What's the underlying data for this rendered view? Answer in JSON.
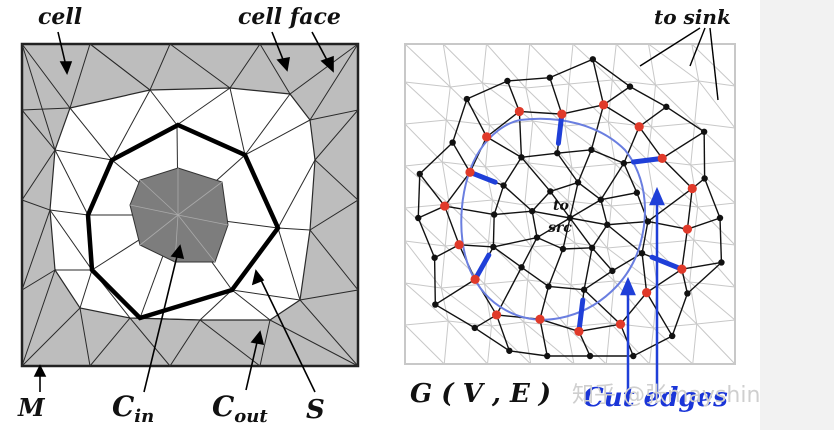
{
  "left_panel": {
    "labels": {
      "cell": "cell",
      "cell_face": "cell face",
      "m": "M",
      "c_in_base": "C",
      "c_in_sub": "in",
      "c_out_base": "C",
      "c_out_sub": "out",
      "s": "S"
    }
  },
  "right_panel": {
    "labels": {
      "to_sink": "to sink",
      "to_src_line1": "to",
      "to_src_line2": "src",
      "graph": "G ( V , E )",
      "cut_edges": "Cut edges"
    }
  },
  "watermark": "知乎 @张mayshine",
  "colors": {
    "mesh_line": "#2a2a2a",
    "gray_band": "#bdbdbd",
    "inner_core": "#7d7d7d",
    "graph_edge": "#111111",
    "grid_line": "#c8c8c8",
    "red_node": "#e03a2a",
    "cut_edge": "#1f3fd8",
    "blue_curve": "#6a7ee0"
  }
}
